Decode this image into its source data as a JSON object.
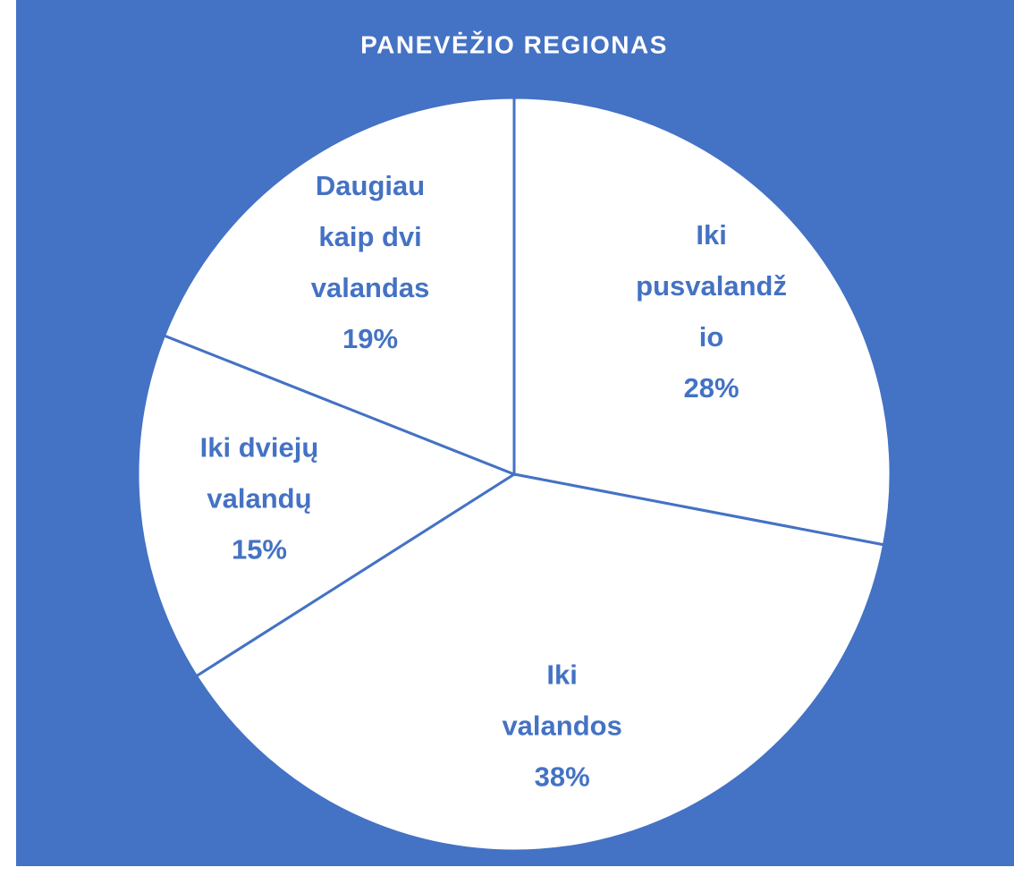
{
  "chart_data": {
    "type": "pie",
    "title": "PANEVĖŽIO REGIONAS",
    "categories": [
      "Iki pusvalandžio",
      "Iki valandos",
      "Iki dviejų valandų",
      "Daugiau kaip dvi valandas"
    ],
    "values": [
      28,
      38,
      15,
      19
    ],
    "value_labels": [
      "28%",
      "38%",
      "15%",
      "19%"
    ],
    "color": "#ffffff",
    "background": "#4472c4",
    "edge_color": "#4472c4"
  }
}
